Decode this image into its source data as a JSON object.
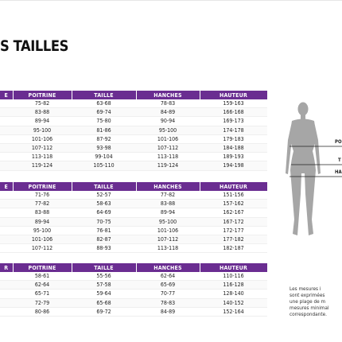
{
  "title": "S TAILLES",
  "headers": [
    "E",
    "POITRINE",
    "TAILLE",
    "HANCHES",
    "HAUTEUR"
  ],
  "headers2": [
    "E",
    "POITRINE",
    "TAILLE",
    "HANCHES",
    "HAUTEUR"
  ],
  "headers3": [
    "R",
    "POITRINE",
    "TAILLE",
    "HANCHES",
    "HAUTEUR"
  ],
  "table1": [
    [
      "",
      "75-82",
      "63-68",
      "78-83",
      "159-163"
    ],
    [
      "",
      "83-88",
      "69-74",
      "84-89",
      "166-168"
    ],
    [
      "",
      "89-94",
      "75-80",
      "90-94",
      "169-173"
    ],
    [
      "",
      "95-100",
      "81-86",
      "95-100",
      "174-178"
    ],
    [
      "",
      "101-106",
      "87-92",
      "101-106",
      "179-183"
    ],
    [
      "",
      "107-112",
      "93-98",
      "107-112",
      "184-188"
    ],
    [
      "",
      "113-118",
      "99-104",
      "113-118",
      "189-193"
    ],
    [
      "",
      "119-124",
      "105-110",
      "119-124",
      "194-198"
    ]
  ],
  "table2": [
    [
      "",
      "71-76",
      "52-57",
      "77-82",
      "151-156"
    ],
    [
      "",
      "77-82",
      "58-63",
      "83-88",
      "157-162"
    ],
    [
      "",
      "83-88",
      "64-69",
      "89-94",
      "162-167"
    ],
    [
      "",
      "89-94",
      "70-75",
      "95-100",
      "167-172"
    ],
    [
      "",
      "95-100",
      "76-81",
      "101-106",
      "172-177"
    ],
    [
      "",
      "101-106",
      "82-87",
      "107-112",
      "177-182"
    ],
    [
      "",
      "107-112",
      "88-93",
      "113-118",
      "182-187"
    ]
  ],
  "table3": [
    [
      "",
      "58-61",
      "55-56",
      "62-64",
      "110-116"
    ],
    [
      "",
      "62-64",
      "57-58",
      "65-69",
      "116-128"
    ],
    [
      "",
      "65-71",
      "59-64",
      "70-77",
      "128-140"
    ],
    [
      "",
      "72-79",
      "65-68",
      "78-83",
      "140-152"
    ],
    [
      "",
      "80-86",
      "69-72",
      "84-89",
      "152-164"
    ]
  ],
  "figure_labels": [
    "PO",
    "T",
    "HA"
  ],
  "note_lines": [
    "Les mesures i",
    "sont exprimées",
    "une plage de m",
    "mesures minimal",
    "correspondante."
  ],
  "colors": {
    "header_bg": "#6a2d91",
    "silhouette": "#a6a6a6"
  }
}
